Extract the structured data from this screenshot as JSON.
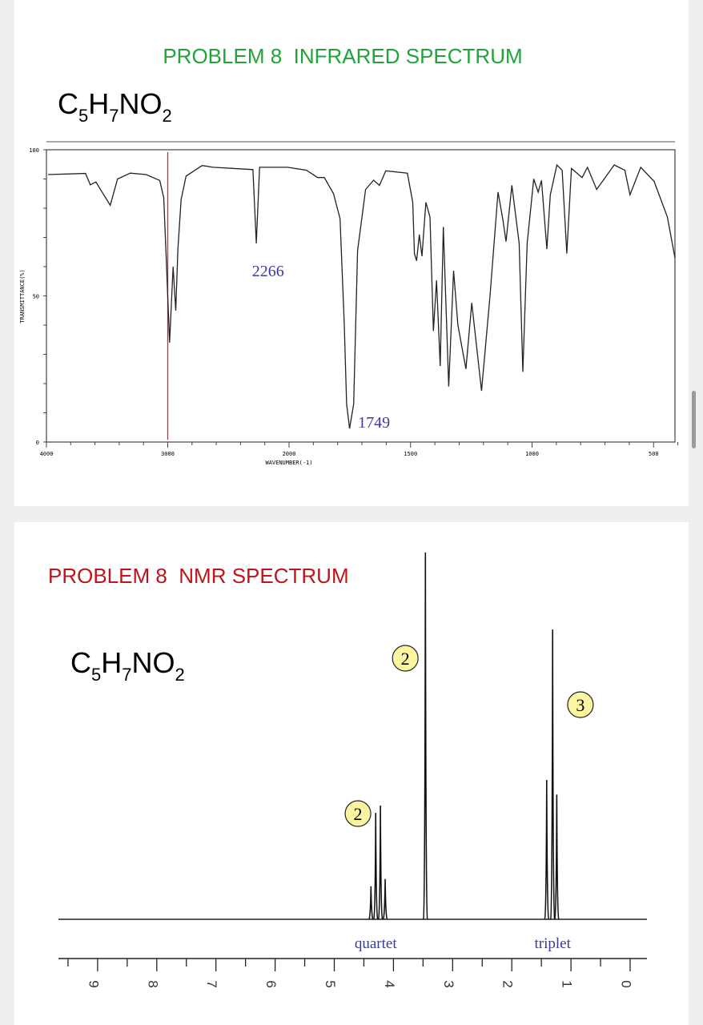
{
  "chart_data": [
    {
      "type": "line",
      "title": "PROBLEM 8  INFRARED SPECTRUM",
      "formula": {
        "C": "C",
        "c_sub": "5",
        "H": "H",
        "h_sub": "7",
        "NO": "NO",
        "o_sub": "2"
      },
      "xlabel": "WAVENUMBER(-1)",
      "ylabel": "TRANSMITTANCE(%)",
      "xlim": [
        4000,
        400
      ],
      "ylim": [
        0,
        100
      ],
      "x_ticks": [
        "4000",
        "3000",
        "2000",
        "1500",
        "1000",
        "500"
      ],
      "y_ticks": [
        "100",
        "50",
        "0"
      ],
      "marker_line": {
        "x": 3000,
        "color": "#e0202a"
      },
      "annotations": [
        {
          "text": "2266",
          "x": 2266
        },
        {
          "text": "1749",
          "x": 1749
        }
      ],
      "title_color": "#22a33a",
      "annotation_color": "#3a3a9a",
      "series": [
        {
          "points": [
            [
              3987,
              91.5
            ],
            [
              3678,
              91.9
            ],
            [
              3638,
              88
            ],
            [
              3592,
              89
            ],
            [
              3474,
              81
            ],
            [
              3414,
              90
            ],
            [
              3309,
              92
            ],
            [
              3178,
              91.5
            ],
            [
              3066,
              89.5
            ],
            [
              3033,
              83.6
            ],
            [
              3013,
              63.6
            ],
            [
              2985,
              34
            ],
            [
              2956,
              60
            ],
            [
              2934,
              45
            ],
            [
              2916,
              66
            ],
            [
              2890,
              83
            ],
            [
              2849,
              91
            ],
            [
              2717,
              94.6
            ],
            [
              2625,
              94
            ],
            [
              2298,
              93.2
            ],
            [
              2270,
              68
            ],
            [
              2243,
              94
            ],
            [
              2013,
              94
            ],
            [
              1928,
              93
            ],
            [
              1883,
              90.5
            ],
            [
              1855,
              90.5
            ],
            [
              1817,
              85
            ],
            [
              1790,
              76.4
            ],
            [
              1773,
              40.8
            ],
            [
              1763,
              13
            ],
            [
              1751,
              4.6
            ],
            [
              1734,
              13
            ],
            [
              1718,
              65.5
            ],
            [
              1685,
              86.4
            ],
            [
              1652,
              89.6
            ],
            [
              1628,
              87.8
            ],
            [
              1602,
              92.8
            ],
            [
              1513,
              92
            ],
            [
              1491,
              82
            ],
            [
              1484,
              64.5
            ],
            [
              1475,
              62
            ],
            [
              1464,
              71
            ],
            [
              1453,
              63.6
            ],
            [
              1437,
              82
            ],
            [
              1420,
              77
            ],
            [
              1406,
              38
            ],
            [
              1393,
              55.3
            ],
            [
              1378,
              26
            ],
            [
              1365,
              73.6
            ],
            [
              1343,
              19
            ],
            [
              1323,
              58.6
            ],
            [
              1305,
              40
            ],
            [
              1272,
              25
            ],
            [
              1248,
              47.6
            ],
            [
              1208,
              17.5
            ],
            [
              1173,
              50
            ],
            [
              1140,
              85.5
            ],
            [
              1120,
              76
            ],
            [
              1107,
              68.6
            ],
            [
              1083,
              87.8
            ],
            [
              1053,
              68
            ],
            [
              1038,
              24
            ],
            [
              1020,
              68
            ],
            [
              993,
              90
            ],
            [
              975,
              85.5
            ],
            [
              961,
              89.5
            ],
            [
              939,
              66
            ],
            [
              925,
              84.6
            ],
            [
              898,
              94.8
            ],
            [
              876,
              93
            ],
            [
              857,
              64.5
            ],
            [
              838,
              93.6
            ],
            [
              794,
              90.5
            ],
            [
              772,
              94
            ],
            [
              734,
              86.4
            ],
            [
              662,
              94.8
            ],
            [
              618,
              93
            ],
            [
              597,
              84.6
            ],
            [
              553,
              94
            ],
            [
              498,
              89.2
            ],
            [
              443,
              77
            ],
            [
              412,
              63
            ]
          ]
        }
      ]
    },
    {
      "type": "line",
      "title": "PROBLEM 8  NMR SPECTRUM",
      "formula": {
        "C": "C",
        "c_sub": "5",
        "H": "H",
        "h_sub": "7",
        "NO": "NO",
        "o_sub": "2"
      },
      "xlim": [
        9.9,
        -0.3
      ],
      "x_ticks": [
        "9",
        "8",
        "7",
        "6",
        "5",
        "4",
        "3",
        "2",
        "1",
        "0"
      ],
      "title_color": "#c0141c",
      "annotation_color": "#3a3a9a",
      "badge_color": "#fbf5a2",
      "peaks": [
        {
          "ppm": 4.38,
          "intensity": 9
        },
        {
          "ppm": 4.3,
          "intensity": 29
        },
        {
          "ppm": 4.22,
          "intensity": 31
        },
        {
          "ppm": 4.14,
          "intensity": 11
        },
        {
          "ppm": 3.46,
          "intensity": 100
        },
        {
          "ppm": 1.41,
          "intensity": 38
        },
        {
          "ppm": 1.31,
          "intensity": 79
        },
        {
          "ppm": 1.24,
          "intensity": 34
        }
      ],
      "annotations": [
        {
          "text": "quartet",
          "ppm": 4.3
        },
        {
          "text": "triplet",
          "ppm": 1.31
        }
      ],
      "integrations": [
        {
          "text": "2",
          "ppm": 3.8
        },
        {
          "text": "2",
          "ppm": 4.6
        },
        {
          "text": "3",
          "ppm": 0.84
        }
      ]
    }
  ]
}
